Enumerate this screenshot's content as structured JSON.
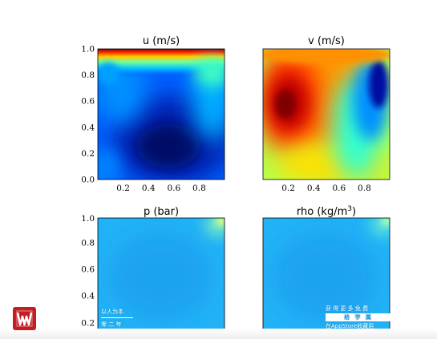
{
  "chart_data": [
    {
      "type": "heatmap",
      "title": "u (m/s)",
      "colormap": "jet",
      "xlim": [
        0,
        1
      ],
      "ylim": [
        0,
        1
      ],
      "xticks": [
        "0.2",
        "0.4",
        "0.6",
        "0.8"
      ],
      "yticks": [
        "0.0",
        "0.2",
        "0.4",
        "0.6",
        "0.8",
        "1.0"
      ]
    },
    {
      "type": "heatmap",
      "title": "v (m/s)",
      "colormap": "jet",
      "xlim": [
        0,
        1
      ],
      "ylim": [
        0,
        1
      ],
      "xticks": [
        "0.2",
        "0.4",
        "0.6",
        "0.8"
      ],
      "yticks": []
    },
    {
      "type": "heatmap",
      "title": "p (bar)",
      "colormap": "jet",
      "xlim": [
        0,
        1
      ],
      "ylim": [
        0,
        1
      ],
      "xticks": [],
      "yticks": [
        "0.2",
        "0.4",
        "0.6",
        "0.8",
        "1.0"
      ]
    },
    {
      "type": "heatmap",
      "title_base": "rho (kg/m",
      "title_sup": "3",
      "title_end": ")",
      "colormap": "jet",
      "xlim": [
        0,
        1
      ],
      "ylim": [
        0,
        1
      ],
      "xticks": [],
      "yticks": []
    }
  ],
  "watermark": {
    "left_line1": "以人为本",
    "left_line2": "零  二  年",
    "right_line1": "获 得 更 多 免 费",
    "right_bar": "给 学 属",
    "right_line3": "在AppStore收藏用"
  },
  "logo_icon": "publisher-logo-icon"
}
